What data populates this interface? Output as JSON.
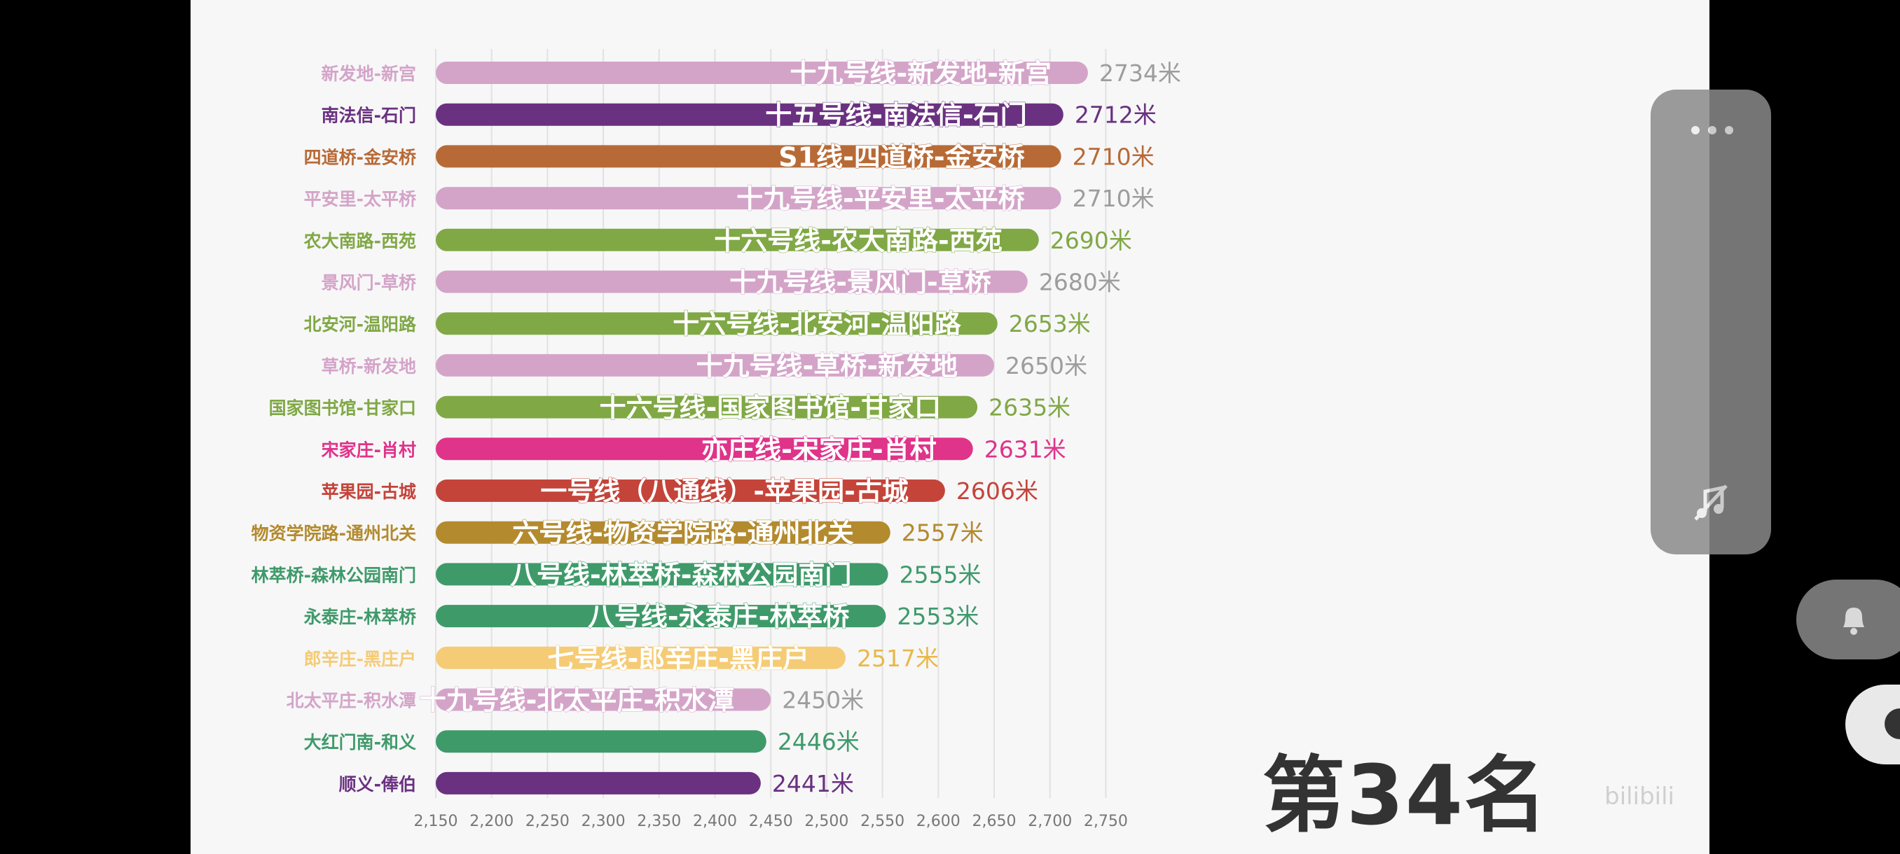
{
  "chart_data": {
    "type": "bar",
    "orientation": "horizontal",
    "categories": [
      "新发地-新宫",
      "南法信-石门",
      "四道桥-金安桥",
      "平安里-太平桥",
      "农大南路-西苑",
      "景风门-草桥",
      "北安河-温阳路",
      "草桥-新发地",
      "国家图书馆-甘家口",
      "宋家庄-肖村",
      "苹果园-古城",
      "物资学院路-通州北关",
      "林萃桥-森林公园南门",
      "永泰庄-林萃桥",
      "郎辛庄-黑庄户",
      "北太平庄-积水潭",
      "大红门南-和义",
      "顺义-俸伯"
    ],
    "bar_labels": [
      "十九号线-新发地-新宫",
      "十五号线-南法信-石门",
      "S1线-四道桥-金安桥",
      "十九号线-平安里-太平桥",
      "十六号线-农大南路-西苑",
      "十九号线-景风门-草桥",
      "十六号线-北安河-温阳路",
      "十九号线-草桥-新发地",
      "十六号线-国家图书馆-甘家口",
      "亦庄线-宋家庄-肖村",
      "一号线（八通线）-苹果园-古城",
      "六号线-物资学院路-通州北关",
      "八号线-林萃桥-森林公园南门",
      "八号线-永泰庄-林萃桥",
      "七号线-郎辛庄-黑庄户",
      "十九号线-北太平庄-积水潭",
      "",
      ""
    ],
    "values": [
      2734,
      2712,
      2710,
      2710,
      2690,
      2680,
      2653,
      2650,
      2635,
      2631,
      2606,
      2557,
      2555,
      2553,
      2517,
      2450,
      2446,
      2441
    ],
    "value_labels": [
      "2734米",
      "2712米",
      "2710米",
      "2710米",
      "2690米",
      "2680米",
      "2653米",
      "2650米",
      "2635米",
      "2631米",
      "2606米",
      "2557米",
      "2555米",
      "2553米",
      "2517米",
      "2450米",
      "2446米",
      "2441米"
    ],
    "colors": [
      "#d4a4c8",
      "#6a3180",
      "#b86a36",
      "#d4a4c8",
      "#80a845",
      "#d4a4c8",
      "#80a845",
      "#d4a4c8",
      "#80a845",
      "#e0338a",
      "#c4443a",
      "#b38a2e",
      "#3f9a6a",
      "#3f9a6a",
      "#f5cb75",
      "#d4a4c8",
      "#3f9a6a",
      "#6a3180"
    ],
    "xlim": [
      2150,
      2765
    ],
    "xticks": [
      2150,
      2200,
      2250,
      2300,
      2350,
      2400,
      2450,
      2500,
      2550,
      2600,
      2650,
      2700,
      2750
    ],
    "xtick_labels": [
      "2,150",
      "2,200",
      "2,250",
      "2,300",
      "2,350",
      "2,400",
      "2,450",
      "2,500",
      "2,550",
      "2,600",
      "2,650",
      "2,700",
      "2,750"
    ],
    "grid": "vertical"
  },
  "overlay": {
    "rank_text": "第34名",
    "watermark_text": "bilibili",
    "more_icon": "more-dots-icon",
    "music_icon": "music-off-icon",
    "bell_icon": "bell-icon"
  }
}
